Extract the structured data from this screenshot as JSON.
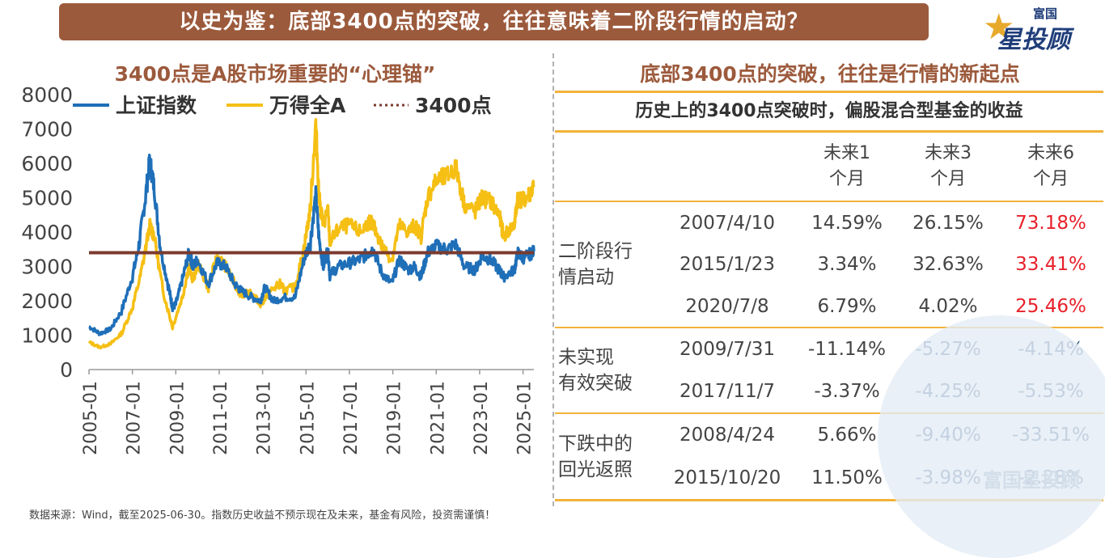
{
  "banner": {
    "title": "以史为鉴：底部3400点的突破，往往意味着二阶段行情的启动？"
  },
  "logo": {
    "small": "富国",
    "big": "星投顾"
  },
  "chart_title": "3400点是A股市场重要的“心理锚”",
  "right_title": "底部3400点的突破，往往是行情的新起点",
  "table_subtitle": "历史上的3400点突破时，偏股混合型基金的收益",
  "table_headers": [
    "未来1个月",
    "未来3个月",
    "未来6个月"
  ],
  "table_header_lines": [
    [
      "未来1",
      "个月"
    ],
    [
      "未来3",
      "个月"
    ],
    [
      "未来6",
      "个月"
    ]
  ],
  "groups": [
    {
      "label_lines": [
        "二阶段行",
        "情启动"
      ],
      "rows": [
        {
          "date": "2007/4/10",
          "m1": "14.59%",
          "m3": "26.15%",
          "m6": "73.18%"
        },
        {
          "date": "2015/1/23",
          "m1": "3.34%",
          "m3": "32.63%",
          "m6": "33.41%"
        },
        {
          "date": "2020/7/8",
          "m1": "6.79%",
          "m3": "4.02%",
          "m6": "25.46%"
        }
      ]
    },
    {
      "label_lines": [
        "未实现",
        "有效突破"
      ],
      "rows": [
        {
          "date": "2009/7/31",
          "m1": "-11.14%",
          "m3": "-5.27%",
          "m6": "-4.14%"
        },
        {
          "date": "2017/11/7",
          "m1": "-3.37%",
          "m3": "-4.25%",
          "m6": "-5.53%"
        }
      ]
    },
    {
      "label_lines": [
        "下跌中的",
        "回光返照"
      ],
      "rows": [
        {
          "date": "2008/4/24",
          "m1": "5.66%",
          "m3": "-9.40%",
          "m6": "-33.51%"
        },
        {
          "date": "2015/10/20",
          "m1": "11.50%",
          "m3": "-3.98%",
          "m6": "-2.28%"
        }
      ]
    }
  ],
  "footer": "数据来源：Wind，截至2025-06-30。指数历史收益不预示现在及未来，基金有风险，投资需谨慎！",
  "watermark": "富国星投顾",
  "colors": {
    "banner": "#9c5a3c",
    "shanghai": "#1f6fb8",
    "wind": "#f5bf14",
    "line3400": "#7b3b2e",
    "border": "#f3b23a",
    "red": "#e8202a",
    "blue": "#45678f"
  },
  "chart_data": {
    "type": "line",
    "title": "3400点是A股市场重要的“心理锚”",
    "ylim": [
      0,
      8000
    ],
    "yticks": [
      0,
      1000,
      2000,
      3000,
      4000,
      5000,
      6000,
      7000,
      8000
    ],
    "xticks": [
      "2005-01",
      "2007-01",
      "2009-01",
      "2011-01",
      "2013-01",
      "2015-01",
      "2017-01",
      "2019-01",
      "2021-01",
      "2023-01",
      "2025-01"
    ],
    "xrange": [
      2005.0,
      2025.5
    ],
    "legend": [
      "上证指数",
      "万得全A",
      "3400点"
    ],
    "legend_position": "top",
    "series": [
      {
        "name": "上证指数",
        "color": "#1f6fb8",
        "points": [
          [
            2005.0,
            1250
          ],
          [
            2005.5,
            1050
          ],
          [
            2006.0,
            1180
          ],
          [
            2006.5,
            1700
          ],
          [
            2007.0,
            2700
          ],
          [
            2007.3,
            3600
          ],
          [
            2007.6,
            5000
          ],
          [
            2007.8,
            6100
          ],
          [
            2008.0,
            5300
          ],
          [
            2008.3,
            3500
          ],
          [
            2008.7,
            2300
          ],
          [
            2008.85,
            1800
          ],
          [
            2009.0,
            1900
          ],
          [
            2009.3,
            2600
          ],
          [
            2009.6,
            3400
          ],
          [
            2009.8,
            3000
          ],
          [
            2010.0,
            3200
          ],
          [
            2010.5,
            2500
          ],
          [
            2010.9,
            3100
          ],
          [
            2011.3,
            3000
          ],
          [
            2011.7,
            2500
          ],
          [
            2012.0,
            2300
          ],
          [
            2012.5,
            2100
          ],
          [
            2012.9,
            2000
          ],
          [
            2013.1,
            2400
          ],
          [
            2013.5,
            2000
          ],
          [
            2014.0,
            2100
          ],
          [
            2014.5,
            2100
          ],
          [
            2014.9,
            3200
          ],
          [
            2015.2,
            3700
          ],
          [
            2015.45,
            5100
          ],
          [
            2015.6,
            3800
          ],
          [
            2015.8,
            3000
          ],
          [
            2016.0,
            3500
          ],
          [
            2016.1,
            2750
          ],
          [
            2016.5,
            3000
          ],
          [
            2017.0,
            3100
          ],
          [
            2017.5,
            3200
          ],
          [
            2017.9,
            3400
          ],
          [
            2018.1,
            3500
          ],
          [
            2018.5,
            2800
          ],
          [
            2018.95,
            2500
          ],
          [
            2019.3,
            3200
          ],
          [
            2019.7,
            2900
          ],
          [
            2020.0,
            3000
          ],
          [
            2020.3,
            2700
          ],
          [
            2020.6,
            3400
          ],
          [
            2021.0,
            3600
          ],
          [
            2021.5,
            3500
          ],
          [
            2021.9,
            3650
          ],
          [
            2022.3,
            3000
          ],
          [
            2022.8,
            2900
          ],
          [
            2023.1,
            3300
          ],
          [
            2023.5,
            3200
          ],
          [
            2023.9,
            2900
          ],
          [
            2024.1,
            2700
          ],
          [
            2024.6,
            2900
          ],
          [
            2024.75,
            3400
          ],
          [
            2025.0,
            3250
          ],
          [
            2025.3,
            3350
          ],
          [
            2025.5,
            3440
          ]
        ]
      },
      {
        "name": "万得全A",
        "color": "#f5bf14",
        "points": [
          [
            2005.0,
            800
          ],
          [
            2005.5,
            650
          ],
          [
            2006.0,
            750
          ],
          [
            2006.5,
            1050
          ],
          [
            2007.0,
            1800
          ],
          [
            2007.4,
            2800
          ],
          [
            2007.8,
            4200
          ],
          [
            2008.0,
            3900
          ],
          [
            2008.4,
            2300
          ],
          [
            2008.85,
            1250
          ],
          [
            2009.3,
            2100
          ],
          [
            2009.6,
            3000
          ],
          [
            2009.8,
            2600
          ],
          [
            2010.0,
            3100
          ],
          [
            2010.5,
            2400
          ],
          [
            2010.9,
            3300
          ],
          [
            2011.3,
            3000
          ],
          [
            2011.7,
            2500
          ],
          [
            2012.0,
            2200
          ],
          [
            2012.5,
            2200
          ],
          [
            2012.9,
            1900
          ],
          [
            2013.4,
            2300
          ],
          [
            2013.8,
            2500
          ],
          [
            2014.0,
            2300
          ],
          [
            2014.5,
            2400
          ],
          [
            2014.9,
            3500
          ],
          [
            2015.2,
            4700
          ],
          [
            2015.45,
            7200
          ],
          [
            2015.6,
            5000
          ],
          [
            2015.8,
            4200
          ],
          [
            2016.0,
            4700
          ],
          [
            2016.1,
            3700
          ],
          [
            2016.5,
            4100
          ],
          [
            2017.0,
            4200
          ],
          [
            2017.5,
            4000
          ],
          [
            2017.9,
            4300
          ],
          [
            2018.1,
            4200
          ],
          [
            2018.5,
            3600
          ],
          [
            2018.95,
            3200
          ],
          [
            2019.3,
            4200
          ],
          [
            2019.7,
            4000
          ],
          [
            2020.0,
            4200
          ],
          [
            2020.3,
            3900
          ],
          [
            2020.6,
            5000
          ],
          [
            2021.0,
            5500
          ],
          [
            2021.5,
            5600
          ],
          [
            2021.9,
            5900
          ],
          [
            2022.3,
            4800
          ],
          [
            2022.8,
            4600
          ],
          [
            2023.1,
            5000
          ],
          [
            2023.5,
            4900
          ],
          [
            2023.9,
            4500
          ],
          [
            2024.1,
            3900
          ],
          [
            2024.6,
            4200
          ],
          [
            2024.75,
            5000
          ],
          [
            2025.0,
            4900
          ],
          [
            2025.3,
            5100
          ],
          [
            2025.5,
            5300
          ]
        ]
      },
      {
        "name": "3400点",
        "color": "#7b3b2e",
        "points": [
          [
            2005.0,
            3400
          ],
          [
            2025.5,
            3400
          ]
        ]
      }
    ]
  }
}
